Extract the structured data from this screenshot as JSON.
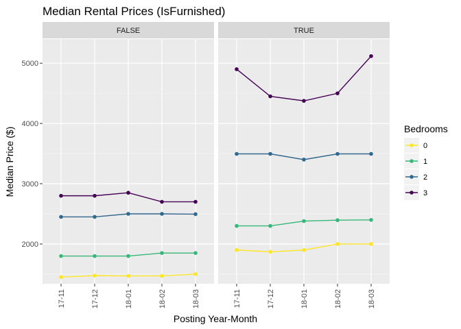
{
  "chart_data": {
    "type": "line",
    "title": "Median Rental Prices (IsFurnished)",
    "xlabel": "Posting Year-Month",
    "ylabel": "Median Price ($)",
    "categories": [
      "17-11",
      "17-12",
      "18-01",
      "18-02",
      "18-03"
    ],
    "y_ticks": [
      2000,
      3000,
      4000,
      5000
    ],
    "ylim": [
      1340,
      5400
    ],
    "grid": true,
    "legend": {
      "title": "Bedrooms",
      "position": "right"
    },
    "panels": [
      {
        "label": "FALSE",
        "series": [
          {
            "name": "0",
            "color": "#FDE725",
            "values": [
              1450,
              1475,
              1470,
              1470,
              1500
            ]
          },
          {
            "name": "1",
            "color": "#35B779",
            "values": [
              1800,
              1800,
              1800,
              1850,
              1850
            ]
          },
          {
            "name": "2",
            "color": "#31688E",
            "values": [
              2450,
              2450,
              2500,
              2500,
              2495
            ]
          },
          {
            "name": "3",
            "color": "#440154",
            "values": [
              2800,
              2800,
              2850,
              2700,
              2700
            ]
          }
        ]
      },
      {
        "label": "TRUE",
        "series": [
          {
            "name": "0",
            "color": "#FDE725",
            "values": [
              1900,
              1870,
              1900,
              2000,
              2000
            ]
          },
          {
            "name": "1",
            "color": "#35B779",
            "values": [
              2300,
              2300,
              2380,
              2395,
              2400
            ]
          },
          {
            "name": "2",
            "color": "#31688E",
            "values": [
              3495,
              3495,
              3400,
              3495,
              3495
            ]
          },
          {
            "name": "3",
            "color": "#440154",
            "values": [
              4900,
              4450,
              4375,
              4500,
              5117
            ]
          }
        ]
      }
    ]
  }
}
